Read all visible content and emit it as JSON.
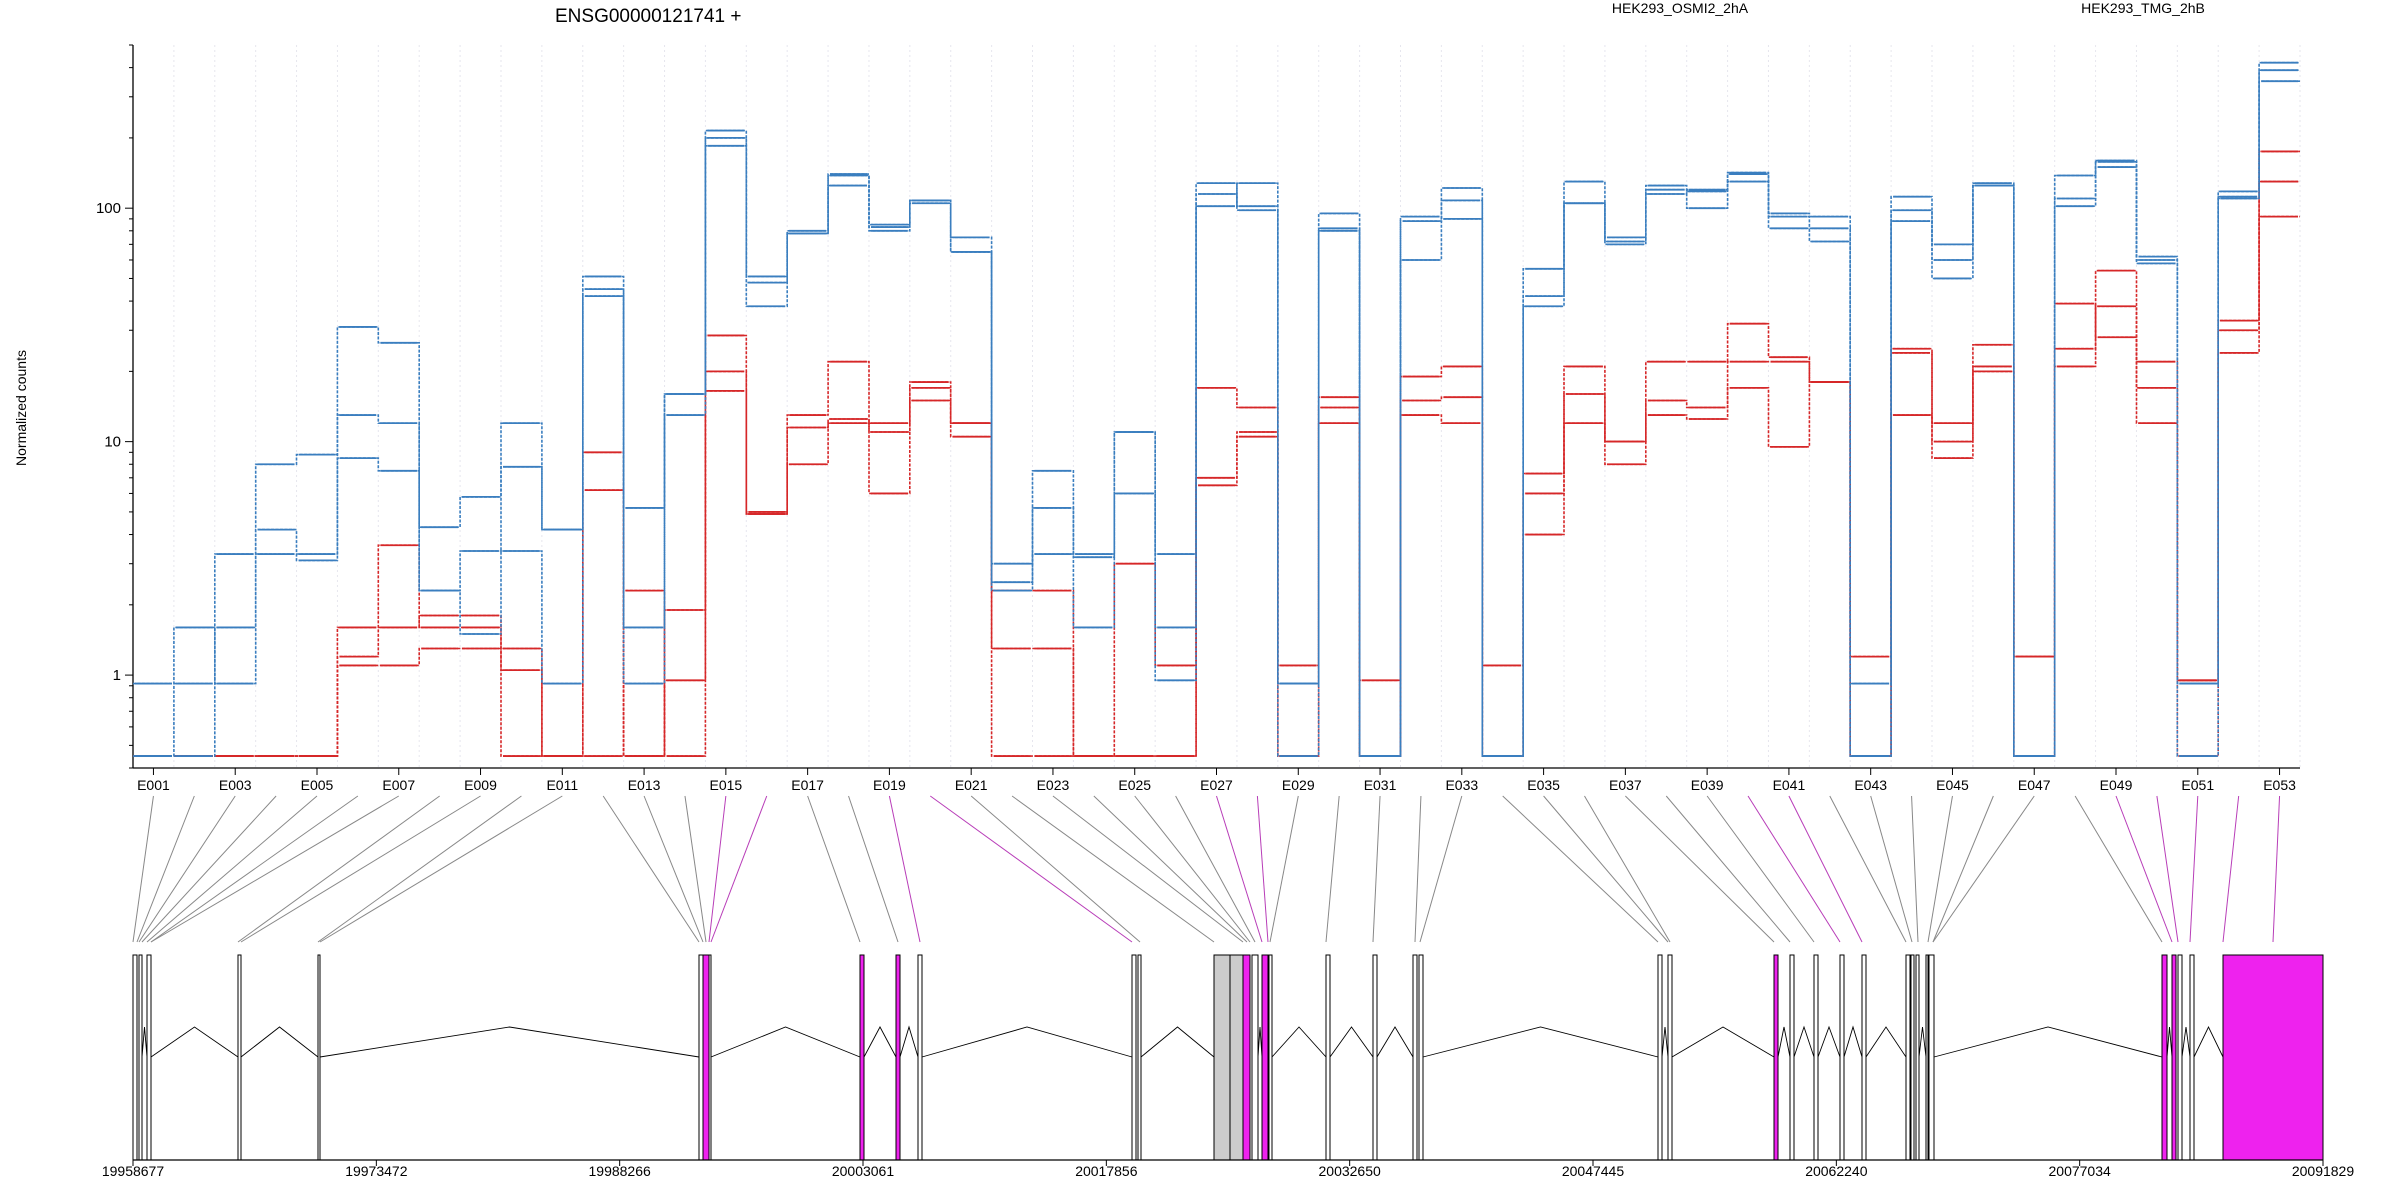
{
  "chart_data": {
    "type": "line",
    "title": "ENSG00000121741 +",
    "ylabel": "Normalized counts",
    "xlabel": "",
    "yscale": "log",
    "ylim": [
      0.4,
      500
    ],
    "y_ticks": [
      1,
      10,
      100
    ],
    "grid": "vertical, per exon",
    "legend": [
      "HEK293_OSMI2_2hA",
      "HEK293_TMG_2hB"
    ],
    "legend_placement": "top",
    "colors": {
      "OSMI2": "#d62728",
      "TMG": "#3a7ebf",
      "exon_highlight": "#ee22ee",
      "exon_normal": "#ffffff",
      "exon_grey": "#cccccc"
    },
    "exons": [
      "E001",
      "E002",
      "E003",
      "E004",
      "E005",
      "E006",
      "E007",
      "E008",
      "E009",
      "E010",
      "E011",
      "E012",
      "E013",
      "E014",
      "E015",
      "E016",
      "E017",
      "E018",
      "E019",
      "E020",
      "E021",
      "E022",
      "E023",
      "E024",
      "E025",
      "E026",
      "E027",
      "E028",
      "E029",
      "E030",
      "E031",
      "E032",
      "E033",
      "E034",
      "E035",
      "E036",
      "E037",
      "E038",
      "E039",
      "E040",
      "E041",
      "E042",
      "E043",
      "E044",
      "E045",
      "E046",
      "E047",
      "E048",
      "E049",
      "E050",
      "E051",
      "E052",
      "E053"
    ],
    "x_tick_labels": [
      "E001",
      "E003",
      "E005",
      "E007",
      "E009",
      "E011",
      "E013",
      "E015",
      "E017",
      "E019",
      "E021",
      "E023",
      "E025",
      "E027",
      "E029",
      "E031",
      "E033",
      "E035",
      "E037",
      "E039",
      "E041",
      "E043",
      "E045",
      "E047",
      "E049",
      "E051",
      "E053"
    ],
    "series": [
      {
        "name": "HEK293_OSMI2_2hA",
        "values": [
          0.45,
          0.45,
          0.45,
          0.45,
          0.45,
          1.1,
          1.1,
          1.3,
          1.3,
          1.3,
          0.45,
          0.45,
          2.3,
          0.45,
          20,
          5,
          11.5,
          12,
          6,
          15,
          12,
          1.3,
          1.3,
          0.45,
          0.45,
          0.45,
          7,
          10.5,
          1.1,
          14,
          0.95,
          15,
          15.5,
          1.1,
          6,
          16,
          10,
          15,
          14,
          22,
          22,
          18,
          1.2,
          25,
          12,
          21,
          1.2,
          25,
          38,
          17,
          0.95,
          30,
          130
        ]
      },
      {
        "name": "HEK293_OSMI2_2hA",
        "values": [
          0.45,
          0.45,
          0.45,
          0.45,
          0.45,
          1.6,
          1.6,
          1.8,
          1.8,
          1.05,
          0.45,
          6.2,
          0.45,
          1.9,
          16.5,
          4.9,
          8,
          12.5,
          11,
          17,
          10.5,
          2.3,
          2.3,
          0.45,
          3,
          1.1,
          6.5,
          11,
          0.45,
          15.5,
          0.45,
          13,
          12,
          0.45,
          4,
          12,
          8,
          13,
          12.5,
          17,
          9.5,
          18,
          0.45,
          24,
          8.5,
          20,
          1.2,
          39,
          28,
          12,
          0.95,
          24,
          92
        ]
      },
      {
        "name": "HEK293_OSMI2_2hA",
        "values": [
          0.45,
          0.45,
          0.45,
          0.45,
          0.45,
          1.2,
          3.6,
          1.6,
          1.6,
          0.45,
          0.45,
          9,
          0.45,
          0.95,
          28.5,
          4.9,
          13,
          22,
          12,
          18,
          12,
          0.45,
          0.45,
          0.45,
          0.45,
          0.45,
          17,
          14,
          0.45,
          12,
          0.45,
          19,
          21,
          0.45,
          7.3,
          21,
          10,
          22,
          22,
          32,
          23,
          18,
          0.45,
          13,
          10,
          26,
          0.45,
          21,
          54,
          22,
          0.45,
          33,
          175
        ]
      },
      {
        "name": "HEK293_TMG_2hB",
        "values": [
          0.92,
          0.92,
          1.6,
          3.3,
          3.3,
          13,
          12,
          2.3,
          3.4,
          3.4,
          0.92,
          45,
          1.6,
          16,
          200,
          51,
          80,
          125,
          80,
          105,
          75,
          2.3,
          5.2,
          3.2,
          11,
          0.95,
          115,
          102,
          0.92,
          80,
          0.45,
          92,
          90,
          0.45,
          55,
          130,
          70,
          120,
          100,
          130,
          82,
          72,
          0.92,
          88,
          50,
          125,
          0.45,
          110,
          150,
          58,
          0.92,
          118,
          350
        ]
      },
      {
        "name": "HEK293_TMG_2hB",
        "values": [
          0.45,
          0.45,
          3.3,
          4.2,
          3.1,
          8.5,
          7.5,
          4.3,
          5.8,
          7.8,
          4.2,
          42,
          5.2,
          16,
          185,
          38,
          78,
          140,
          83,
          108,
          65,
          3,
          7.5,
          1.6,
          6,
          3.3,
          128,
          98,
          0.92,
          95,
          0.45,
          88,
          108,
          0.45,
          38,
          105,
          75,
          115,
          118,
          140,
          92,
          82,
          0.45,
          98,
          70,
          128,
          0.45,
          102,
          160,
          60,
          0.92,
          110,
          390
        ]
      },
      {
        "name": "HEK293_TMG_2hB",
        "values": [
          0.45,
          1.6,
          0.92,
          8,
          8.8,
          31,
          26.5,
          2.3,
          1.5,
          12,
          4.2,
          51,
          0.92,
          13,
          215,
          48,
          78,
          138,
          85,
          108,
          65,
          2.5,
          3.3,
          3.3,
          11,
          1.6,
          102,
          128,
          0.45,
          82,
          0.45,
          60,
          122,
          0.45,
          42,
          105,
          72,
          125,
          120,
          142,
          95,
          92,
          0.45,
          112,
          60,
          125,
          0.45,
          138,
          158,
          62,
          0.45,
          112,
          420
        ]
      }
    ],
    "genomic_axis": {
      "ticks": [
        19958677,
        19973472,
        19988266,
        20003061,
        20017856,
        20032650,
        20047445,
        20062240,
        20077034,
        20091829
      ],
      "range": [
        19958677,
        20091829
      ]
    }
  }
}
